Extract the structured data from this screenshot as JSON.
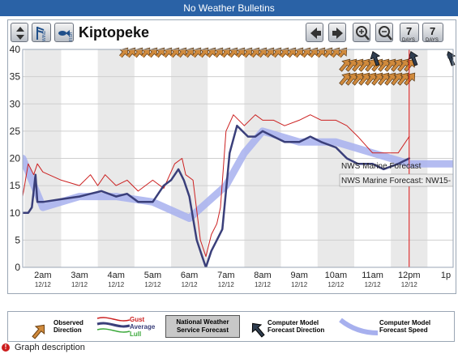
{
  "banner": {
    "text": "No Weather Bulletins"
  },
  "toolbar": {
    "station": "Kiptopeke",
    "wind_label": "WIND",
    "fish_label": "FISH",
    "day_buttons": [
      {
        "number": "7",
        "label": "DAYS"
      },
      {
        "number": "7",
        "label": "DAYS"
      }
    ]
  },
  "chart_data": {
    "type": "line",
    "y_ticks": [
      "0",
      "5",
      "10",
      "15",
      "20",
      "25",
      "30",
      "35",
      "40"
    ],
    "ylim": [
      0,
      40
    ],
    "x_ticks": [
      {
        "time": "2am",
        "date": "12/12",
        "x": 2
      },
      {
        "time": "3am",
        "date": "12/12",
        "x": 3
      },
      {
        "time": "4am",
        "date": "12/12",
        "x": 4
      },
      {
        "time": "5am",
        "date": "12/12",
        "x": 5
      },
      {
        "time": "6am",
        "date": "12/12",
        "x": 6
      },
      {
        "time": "7am",
        "date": "12/12",
        "x": 7
      },
      {
        "time": "8am",
        "date": "12/12",
        "x": 8
      },
      {
        "time": "9am",
        "date": "12/12",
        "x": 9
      },
      {
        "time": "10am",
        "date": "12/12",
        "x": 10
      },
      {
        "time": "11am",
        "date": "12/12",
        "x": 11
      },
      {
        "time": "12pm",
        "date": "12/12",
        "x": 12
      },
      {
        "time": "1p",
        "date": "",
        "x": 13
      }
    ],
    "xlim": [
      1.45,
      13.2
    ],
    "current_time": 12.0,
    "series": [
      {
        "name": "Gust",
        "color": "#cc2020",
        "x": [
          1.45,
          1.6,
          1.75,
          1.85,
          2.0,
          2.5,
          3.0,
          3.3,
          3.5,
          3.7,
          4.0,
          4.3,
          4.6,
          5.0,
          5.3,
          5.6,
          5.8,
          5.9,
          6.1,
          6.3,
          6.45,
          6.6,
          6.75,
          6.85,
          7.0,
          7.2,
          7.5,
          7.8,
          8.0,
          8.3,
          8.6,
          9.0,
          9.3,
          9.6,
          10.0,
          10.3,
          10.6,
          11.0,
          11.3,
          11.7,
          12.0
        ],
        "values": [
          13,
          19,
          17,
          19,
          17.5,
          16,
          15,
          17,
          15,
          17,
          15,
          16,
          14,
          16,
          14.5,
          19,
          20,
          17,
          16,
          5,
          2,
          6,
          8,
          11,
          25,
          28,
          26,
          28,
          27,
          27,
          26,
          27,
          28,
          27,
          27,
          26,
          24,
          21,
          21,
          21,
          24
        ]
      },
      {
        "name": "Average",
        "color": "#3a3f7a",
        "x": [
          1.45,
          1.6,
          1.7,
          1.8,
          1.85,
          2.0,
          2.5,
          3.0,
          3.3,
          3.6,
          4.0,
          4.3,
          4.6,
          5.0,
          5.3,
          5.5,
          5.7,
          5.85,
          6.0,
          6.2,
          6.35,
          6.45,
          6.6,
          6.75,
          6.9,
          7.1,
          7.3,
          7.6,
          7.8,
          8.0,
          8.3,
          8.6,
          9.0,
          9.3,
          9.6,
          10.0,
          10.3,
          10.6,
          11.0,
          11.3,
          11.7,
          12.0
        ],
        "values": [
          10,
          10,
          11,
          17,
          12,
          12,
          12.5,
          13,
          13.5,
          14,
          13,
          13.5,
          12,
          12,
          15,
          16,
          18,
          16,
          13,
          5,
          2,
          0,
          3,
          5,
          7,
          21,
          26,
          24,
          24,
          25,
          24,
          23,
          23,
          24,
          23,
          22,
          20,
          19,
          19,
          18,
          19,
          20
        ]
      },
      {
        "name": "Lull",
        "color": "#3aa83a",
        "x": [],
        "values": []
      },
      {
        "name": "Computer Model Forecast Speed",
        "color": "#a7b0ee",
        "x": [
          1.45,
          2.0,
          3.0,
          4.0,
          5.0,
          6.0,
          6.5,
          7.0,
          7.5,
          8.0,
          8.5,
          9.0,
          9.5,
          10.0,
          10.5,
          11.0,
          11.5,
          12.0,
          12.5,
          13.2
        ],
        "values": [
          20,
          11,
          13,
          13,
          12,
          9,
          12,
          15,
          21,
          25,
          24,
          23,
          23,
          23,
          22,
          21,
          20,
          19,
          19,
          19
        ]
      }
    ],
    "forecast_labels": [
      "NWS Marine Forecast",
      "NWS Marine Forecast: NW15-"
    ]
  },
  "legend": {
    "observed_direction": "Observed Direction",
    "gust": "Gust",
    "average": "Average",
    "lull": "Lull",
    "nws": "National Weather Service Forecast",
    "model_direction": "Computer Model Forecast Direction",
    "model_speed": "Computer Model Forecast Speed",
    "colors": {
      "gust": "#cc2020",
      "average": "#3a3f7a",
      "lull": "#3aa83a",
      "observed": "#d08a3c",
      "model": "#2f3d4f",
      "speed": "#a7b0ee"
    }
  },
  "footer": {
    "description_link": "Graph description"
  }
}
